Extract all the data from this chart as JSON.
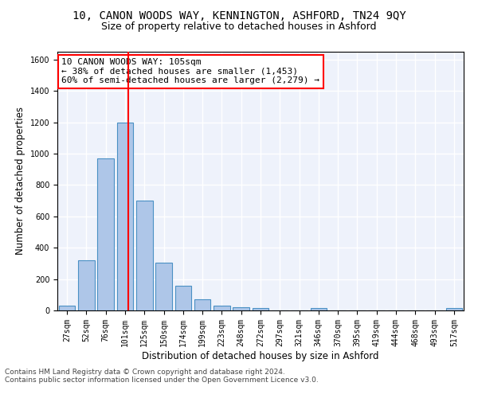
{
  "title": "10, CANON WOODS WAY, KENNINGTON, ASHFORD, TN24 9QY",
  "subtitle": "Size of property relative to detached houses in Ashford",
  "xlabel": "Distribution of detached houses by size in Ashford",
  "ylabel": "Number of detached properties",
  "bar_labels": [
    "27sqm",
    "52sqm",
    "76sqm",
    "101sqm",
    "125sqm",
    "150sqm",
    "174sqm",
    "199sqm",
    "223sqm",
    "248sqm",
    "272sqm",
    "297sqm",
    "321sqm",
    "346sqm",
    "370sqm",
    "395sqm",
    "419sqm",
    "444sqm",
    "468sqm",
    "493sqm",
    "517sqm"
  ],
  "bar_values": [
    30,
    320,
    970,
    1200,
    700,
    305,
    155,
    70,
    30,
    20,
    15,
    0,
    0,
    15,
    0,
    0,
    0,
    0,
    0,
    0,
    15
  ],
  "bar_color": "#aec6e8",
  "bar_edge_color": "#4a90c4",
  "vline_x": 3.15,
  "vline_color": "red",
  "annotation_text": "10 CANON WOODS WAY: 105sqm\n← 38% of detached houses are smaller (1,453)\n60% of semi-detached houses are larger (2,279) →",
  "annotation_box_color": "white",
  "annotation_box_edgecolor": "red",
  "ylim": [
    0,
    1650
  ],
  "yticks": [
    0,
    200,
    400,
    600,
    800,
    1000,
    1200,
    1400,
    1600
  ],
  "footer_line1": "Contains HM Land Registry data © Crown copyright and database right 2024.",
  "footer_line2": "Contains public sector information licensed under the Open Government Licence v3.0.",
  "bg_color": "#eef2fb",
  "grid_color": "white",
  "title_fontsize": 10,
  "subtitle_fontsize": 9,
  "axis_label_fontsize": 8.5,
  "tick_fontsize": 7,
  "annotation_fontsize": 8,
  "footer_fontsize": 6.5
}
